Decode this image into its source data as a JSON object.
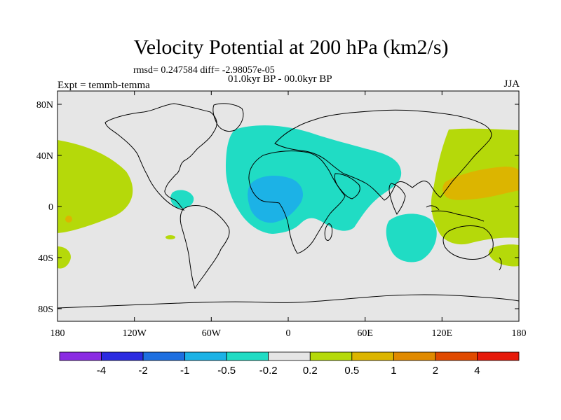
{
  "title": "Velocity Potential at 200 hPa (km2/s)",
  "stats": "rmsd= 0.247584 diff= -2.98057e-05",
  "period": "01.0kyr BP - 00.0kyr BP",
  "experiment": "Expt = temmb-temma",
  "season": "JJA",
  "map": {
    "background": "#e6e6e6",
    "lat_ticks": [
      "80N",
      "40N",
      "0",
      "40S",
      "80S"
    ],
    "lon_ticks": [
      "180",
      "120W",
      "60W",
      "0",
      "60E",
      "120E",
      "180"
    ]
  },
  "colorbar": {
    "colors": [
      "#8a2be2",
      "#2b2be0",
      "#1e6fe0",
      "#1cb2e6",
      "#20dcc4",
      "#e6e6e6",
      "#b5d90a",
      "#dcb500",
      "#e08a00",
      "#e04a00",
      "#e61a0a"
    ],
    "labels": [
      "-4",
      "-2",
      "-1",
      "-0.5",
      "-0.2",
      "0.2",
      "0.5",
      "1",
      "2",
      "4"
    ]
  }
}
